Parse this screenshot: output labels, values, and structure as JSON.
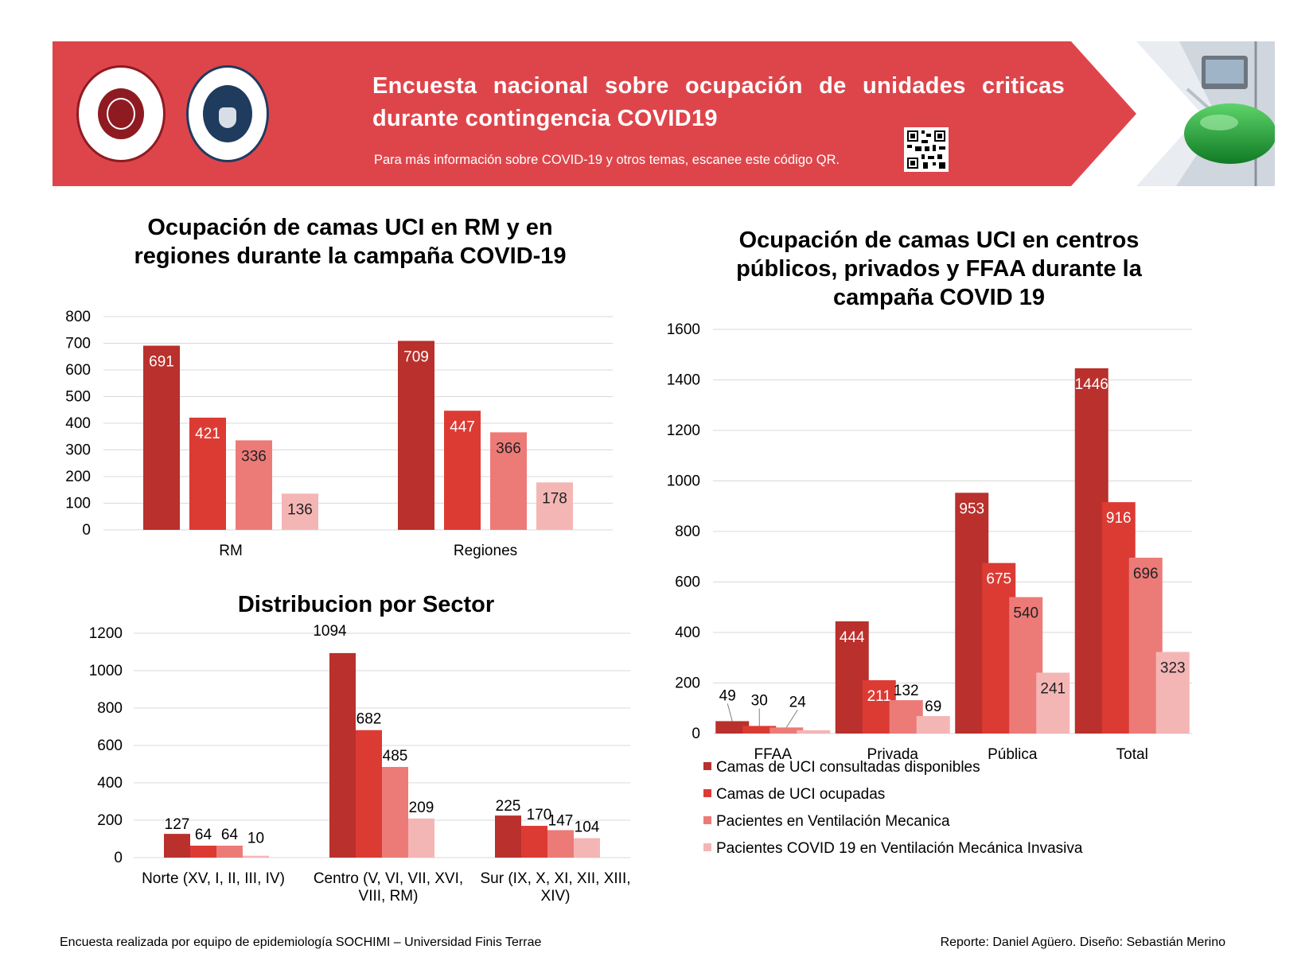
{
  "header": {
    "title": "Encuesta nacional sobre ocupación de unidades criticas durante contingencia COVID19",
    "subtitle": "Para más información sobre COVID-19 y otros temas, escanee este código QR.",
    "colors": {
      "banner": "#de454b",
      "text": "#ffffff"
    },
    "logos": [
      "Sociedad Chilena de Medicina Intensiva",
      "Universidad Finis Terrae"
    ],
    "logo_icons": [
      "sochimi-logo-icon",
      "finis-terrae-logo-icon"
    ],
    "qr_icon": "qr-code-icon",
    "photo_icon": "ventilator-photo-icon"
  },
  "series_colors": [
    "#b9302c",
    "#dc3b34",
    "#ec7b78",
    "#f4b6b5"
  ],
  "chart_data": [
    {
      "id": "chart1",
      "type": "bar",
      "title": "Ocupación de camas UCI en RM y en regiones durante la campaña COVID-19",
      "categories": [
        "RM",
        "Regiones"
      ],
      "series": [
        {
          "values": [
            691,
            709
          ]
        },
        {
          "values": [
            421,
            447
          ]
        },
        {
          "values": [
            336,
            366
          ]
        },
        {
          "values": [
            136,
            178
          ]
        }
      ],
      "ylim": [
        0,
        800
      ],
      "yticks": [
        0,
        100,
        200,
        300,
        400,
        500,
        600,
        700,
        800
      ],
      "grid": true,
      "data_labels": "inside-top"
    },
    {
      "id": "chart2",
      "type": "bar",
      "title": "Distribucion por Sector",
      "categories": [
        "Norte (XV, I, II, III, IV)",
        "Centro (V, VI, VII, XVI, VIII, RM)",
        "Sur (IX, X, XI, XII, XIII, XIV)"
      ],
      "series": [
        {
          "values": [
            127,
            1094,
            225
          ]
        },
        {
          "values": [
            64,
            682,
            170
          ]
        },
        {
          "values": [
            64,
            485,
            147
          ]
        },
        {
          "values": [
            10,
            209,
            104
          ]
        }
      ],
      "ylim": [
        0,
        1200
      ],
      "yticks": [
        0,
        200,
        400,
        600,
        800,
        1000,
        1200
      ],
      "grid": true,
      "data_labels": "above"
    },
    {
      "id": "chart3",
      "type": "bar",
      "title": "Ocupación de camas UCI en centros públicos, privados y FFAA durante la campaña COVID 19",
      "categories": [
        "FFAA",
        "Privada",
        "Pública",
        "Total"
      ],
      "series": [
        {
          "name": "Camas de UCI consultadas disponibles",
          "values": [
            49,
            444,
            953,
            1446
          ]
        },
        {
          "name": "Camas de UCI ocupadas",
          "values": [
            30,
            211,
            675,
            916
          ]
        },
        {
          "name": "Pacientes en Ventilación Mecanica",
          "values": [
            24,
            132,
            540,
            696
          ]
        },
        {
          "name": "Pacientes COVID 19 en Ventilación Mecánica Invasiva",
          "values": [
            13,
            69,
            241,
            323
          ]
        }
      ],
      "ylim": [
        0,
        1600
      ],
      "yticks": [
        0,
        200,
        400,
        600,
        800,
        1000,
        1200,
        1400,
        1600
      ],
      "grid": true,
      "legend": "bottom",
      "data_labels": "inside-top"
    }
  ],
  "footer": {
    "left": "Encuesta realizada por equipo de epidemiología SOCHIMI – Universidad Finis Terrae",
    "right": "Reporte: Daniel Agüero. Diseño: Sebastián Merino"
  }
}
